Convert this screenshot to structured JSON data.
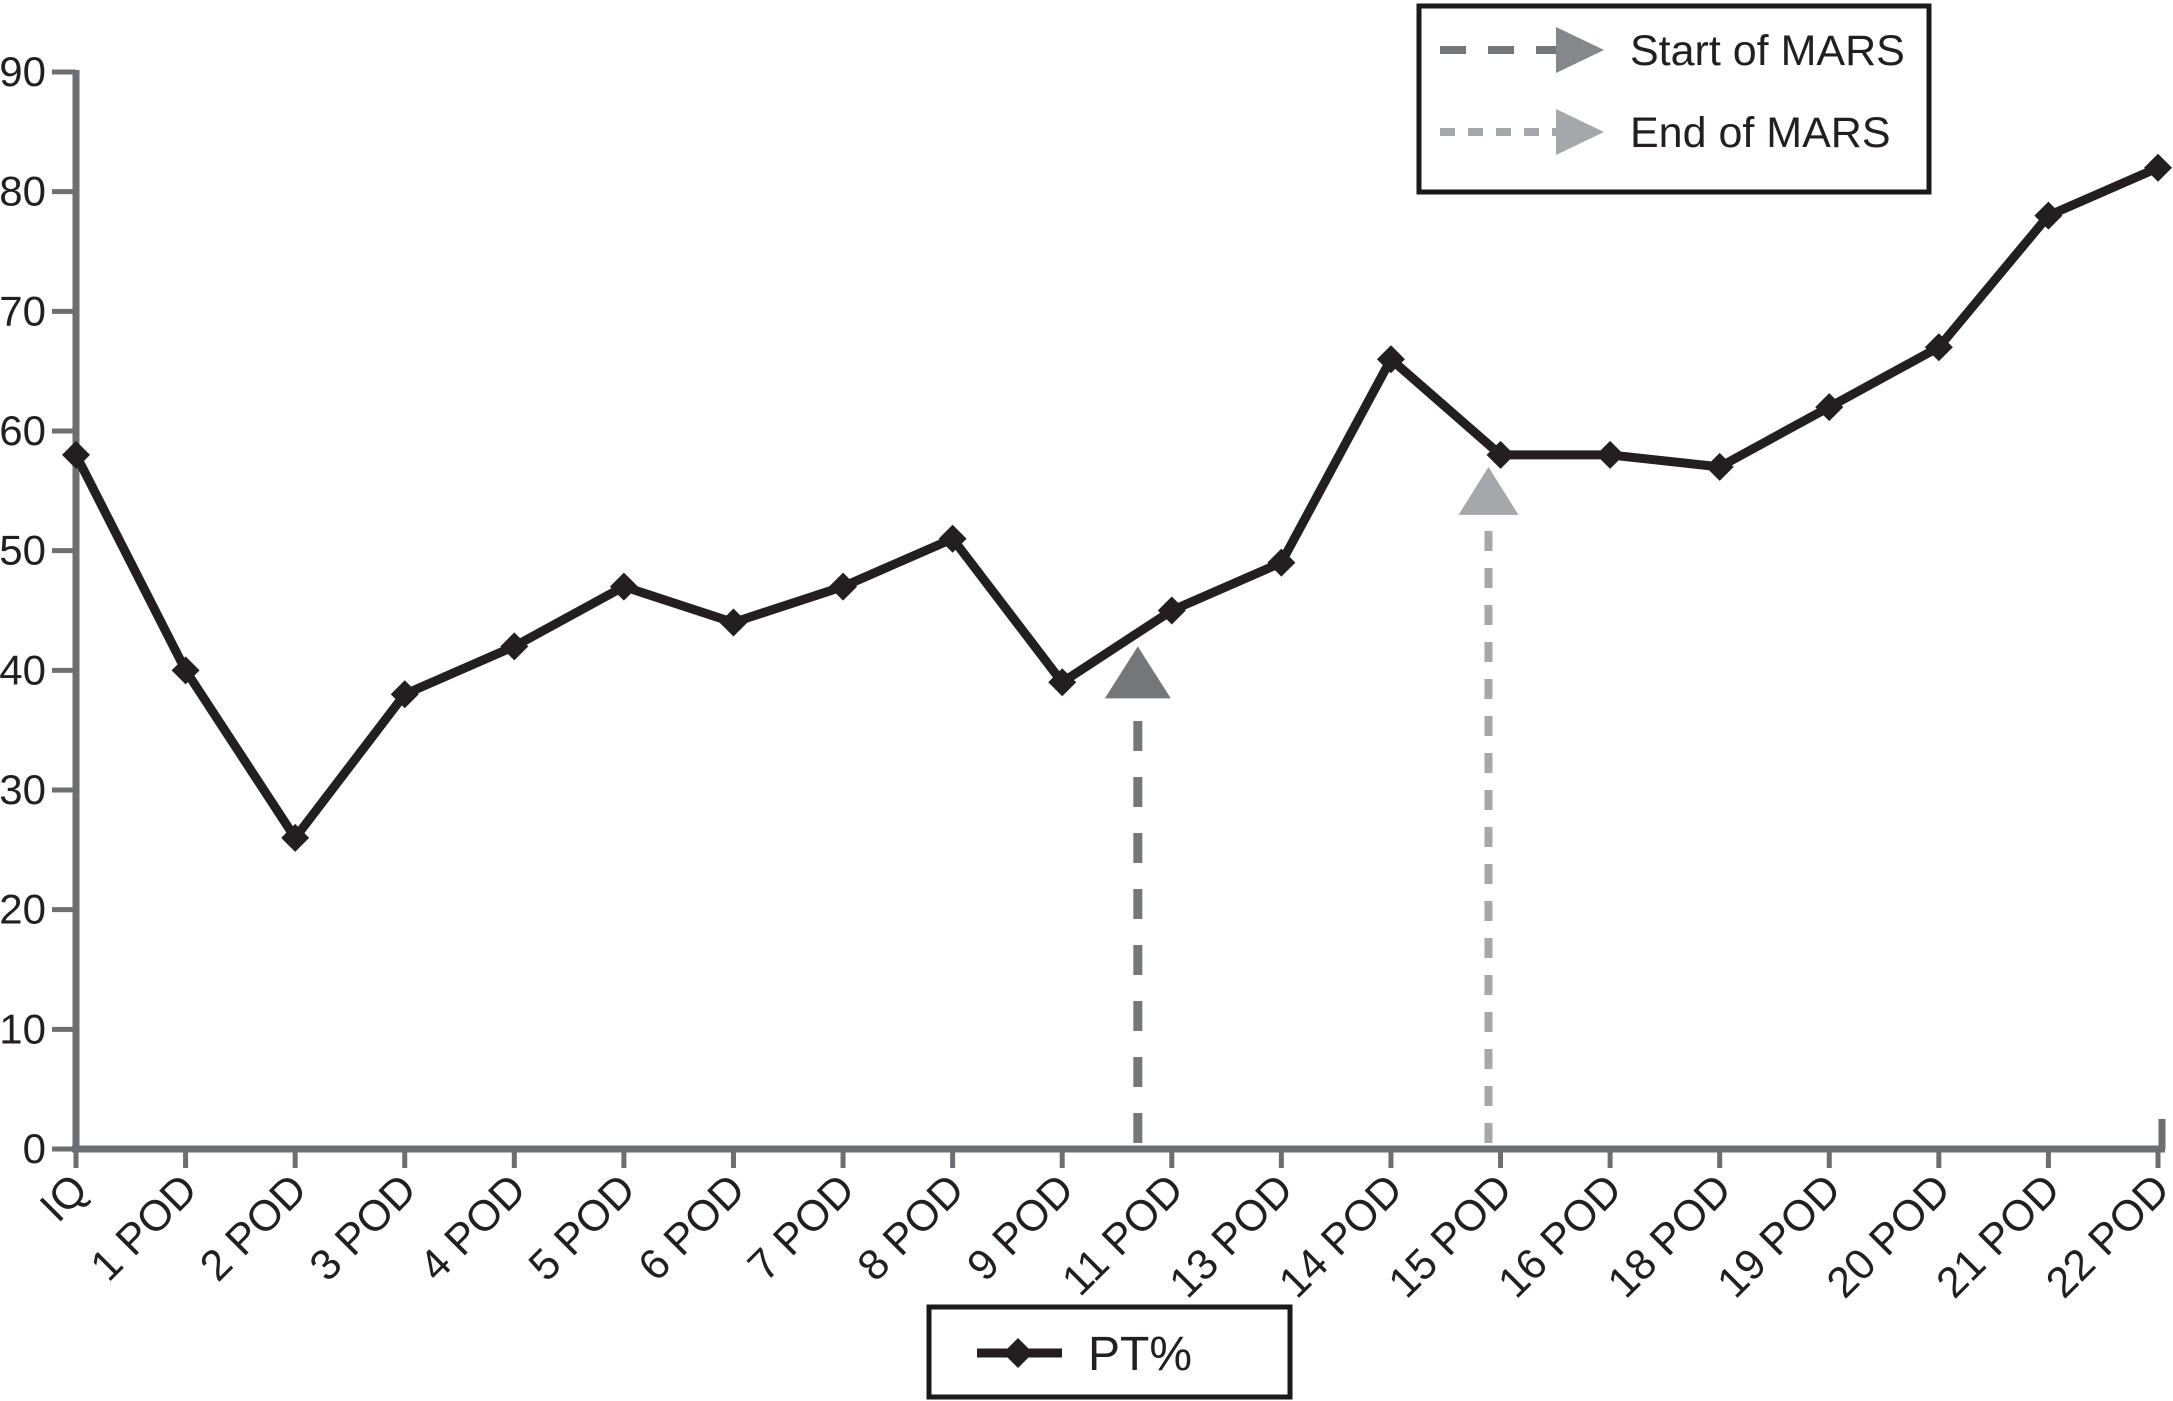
{
  "figure": {
    "background": "#ffffff",
    "text_color": "#231f20",
    "axis_color": "#6d6e71"
  },
  "legend_mars": {
    "items": [
      {
        "label": "Start of MARS",
        "color": "#747679",
        "dash": "long"
      },
      {
        "label": "End of MARS",
        "color": "#a5a7aa",
        "dash": "short"
      }
    ]
  },
  "legend_series": {
    "label": "PT%",
    "marker": "diamond",
    "color": "#231f20"
  },
  "chart_data": {
    "type": "line",
    "title": "",
    "xlabel": "",
    "ylabel": "",
    "categories": [
      "IQ",
      "1 POD",
      "2 POD",
      "3 POD",
      "4 POD",
      "5 POD",
      "6 POD",
      "7 POD",
      "8 POD",
      "9 POD",
      "11 POD",
      "13 POD",
      "14 POD",
      "15 POD",
      "16 POD",
      "18 POD",
      "19 POD",
      "20 POD",
      "21 POD",
      "22 POD"
    ],
    "series": [
      {
        "name": "PT%",
        "color": "#231f20",
        "marker": "diamond",
        "values": [
          58,
          40,
          26,
          38,
          42,
          47,
          44,
          47,
          51,
          39,
          45,
          49,
          66,
          58,
          58,
          57,
          62,
          67,
          78,
          82
        ]
      }
    ],
    "ylim": [
      0,
      90
    ],
    "ytick_step": 10,
    "grid": false,
    "legend_position": "bottom",
    "annotations": [
      {
        "label": "Start of MARS",
        "x_index": 9.69,
        "tip_value": 42,
        "dash": "long",
        "color": "#747679"
      },
      {
        "label": "End of MARS",
        "x_index": 12.89,
        "tip_value": 57,
        "dash": "short",
        "color": "#a5a7aa"
      }
    ]
  }
}
